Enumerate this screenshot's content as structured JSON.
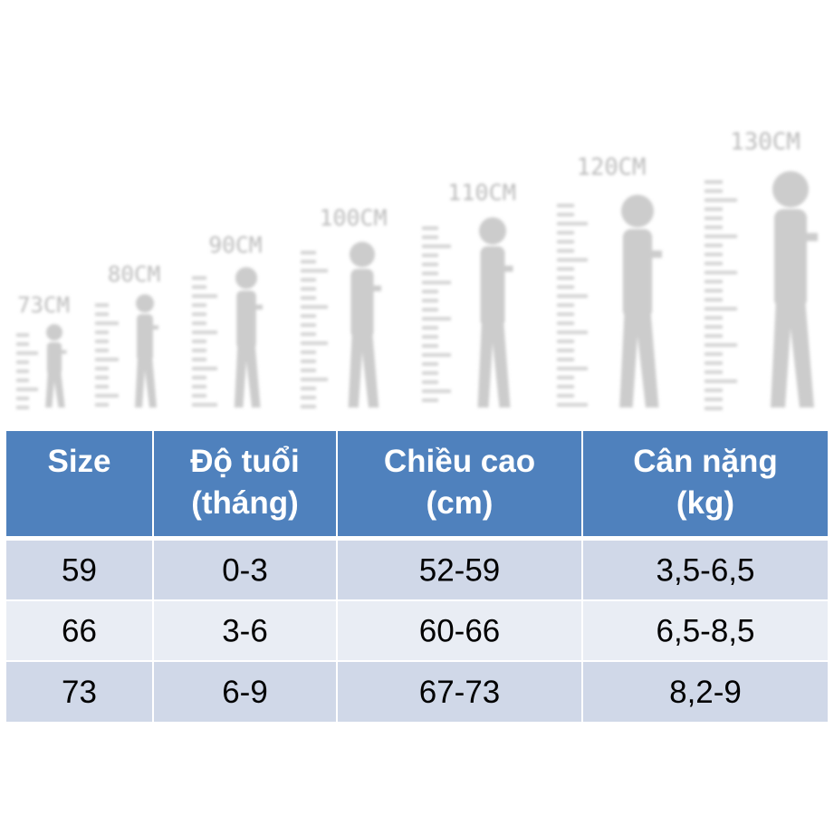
{
  "heights": [
    "73CM",
    "80CM",
    "90CM",
    "100CM",
    "110CM",
    "120CM",
    "130CM"
  ],
  "table": {
    "header": [
      [
        "Size"
      ],
      [
        "Độ tuổi",
        "(tháng)"
      ],
      [
        "Chiều cao",
        "(cm)"
      ],
      [
        "Cân nặng",
        "(kg)"
      ]
    ],
    "rows": [
      [
        "59",
        "0-3",
        "52-59",
        "3,5-6,5"
      ],
      [
        "66",
        "3-6",
        "60-66",
        "6,5-8,5"
      ],
      [
        "73",
        "6-9",
        "67-73",
        "8,2-9"
      ]
    ]
  }
}
